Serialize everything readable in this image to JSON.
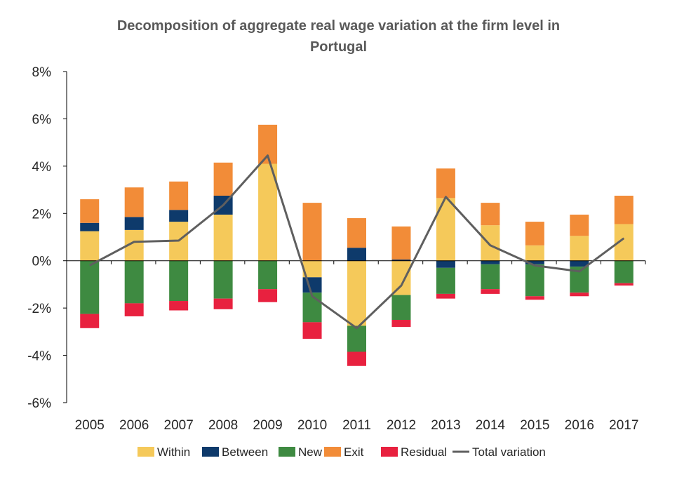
{
  "chart_data": {
    "type": "bar",
    "title_line1": "Decomposition of aggregate real wage variation at the firm level in",
    "title_line2": "Portugal",
    "categories": [
      "2005",
      "2006",
      "2007",
      "2008",
      "2009",
      "2010",
      "2011",
      "2012",
      "2013",
      "2014",
      "2015",
      "2016",
      "2017"
    ],
    "ylim": [
      -6,
      8
    ],
    "yticks": [
      -6,
      -4,
      -2,
      0,
      2,
      4,
      6,
      8
    ],
    "ytick_labels": [
      "-6%",
      "-4%",
      "-2%",
      "0%",
      "2%",
      "4%",
      "6%",
      "8%"
    ],
    "grid": false,
    "legend_position": "bottom",
    "series": [
      {
        "name": "Within",
        "color": "#F5C95A",
        "values": [
          1.25,
          1.3,
          1.65,
          1.95,
          4.1,
          -0.7,
          -2.75,
          -1.45,
          2.65,
          1.5,
          0.65,
          1.05,
          1.55
        ]
      },
      {
        "name": "Between",
        "color": "#0E3A6B",
        "values": [
          0.35,
          0.55,
          0.5,
          0.8,
          0.0,
          -0.65,
          0.55,
          0.05,
          -0.3,
          -0.15,
          -0.15,
          -0.25,
          0.0
        ]
      },
      {
        "name": "New",
        "color": "#3E8A41",
        "values": [
          -2.25,
          -1.8,
          -1.7,
          -1.6,
          -1.2,
          -1.25,
          -1.1,
          -1.05,
          -1.1,
          -1.05,
          -1.35,
          -1.1,
          -0.95
        ]
      },
      {
        "name": "Exit",
        "color": "#F28C38",
        "values": [
          1.0,
          1.25,
          1.2,
          1.4,
          1.65,
          2.45,
          1.25,
          1.4,
          1.25,
          0.95,
          1.0,
          0.9,
          1.2
        ]
      },
      {
        "name": "Residual",
        "color": "#E8213F",
        "values": [
          -0.6,
          -0.55,
          -0.4,
          -0.45,
          -0.55,
          -0.7,
          -0.6,
          -0.3,
          -0.2,
          -0.2,
          -0.15,
          -0.15,
          -0.1
        ]
      }
    ],
    "line": {
      "name": "Total variation",
      "color": "#5F5F5F",
      "values": [
        -0.2,
        0.8,
        0.85,
        2.35,
        4.45,
        -1.5,
        -2.85,
        -1.05,
        2.7,
        0.65,
        -0.2,
        -0.45,
        0.95
      ]
    }
  }
}
